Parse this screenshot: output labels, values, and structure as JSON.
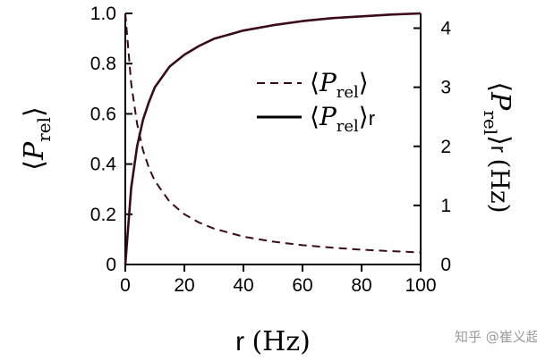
{
  "chart_data": {
    "type": "line",
    "x": [
      0,
      2,
      4,
      6,
      8,
      10,
      15,
      20,
      25,
      30,
      40,
      50,
      60,
      70,
      80,
      90,
      100
    ],
    "series": [
      {
        "name": "⟨P_rel⟩",
        "axis": "left",
        "style": "dashed",
        "color": "#3a0a1a",
        "values": [
          1.0,
          0.72,
          0.56,
          0.455,
          0.385,
          0.333,
          0.25,
          0.2,
          0.167,
          0.143,
          0.111,
          0.091,
          0.077,
          0.067,
          0.059,
          0.053,
          0.048
        ]
      },
      {
        "name": "⟨P_rel⟩r",
        "axis": "right",
        "style": "solid",
        "color": "#3a0a1a",
        "values": [
          0.0,
          1.3,
          2.0,
          2.45,
          2.75,
          3.0,
          3.35,
          3.55,
          3.7,
          3.82,
          3.96,
          4.05,
          4.12,
          4.17,
          4.2,
          4.23,
          4.25
        ]
      }
    ],
    "xlabel": "r (Hz)",
    "ylabel_left": "⟨P_rel⟩",
    "ylabel_right": "⟨P_rel⟩r (Hz)",
    "xlim": [
      0,
      100
    ],
    "ylim_left": [
      0,
      1.0
    ],
    "ylim_right": [
      0,
      4.25
    ],
    "x_ticks": [
      0,
      20,
      40,
      60,
      80,
      100
    ],
    "x_tick_labels": [
      "0",
      "20",
      "40",
      "60",
      "80",
      "100"
    ],
    "y_left_ticks": [
      0,
      0.2,
      0.4,
      0.6,
      0.8,
      1.0
    ],
    "y_left_tick_labels": [
      "0",
      "0.2",
      "0.4",
      "0.6",
      "0.8",
      "1.0"
    ],
    "y_right_ticks": [
      0,
      1,
      2,
      3,
      4
    ],
    "y_right_tick_labels": [
      "0",
      "1",
      "2",
      "3",
      "4"
    ],
    "grid": false,
    "legend_placement": "center-right"
  },
  "watermark": "知乎 @崔义超"
}
